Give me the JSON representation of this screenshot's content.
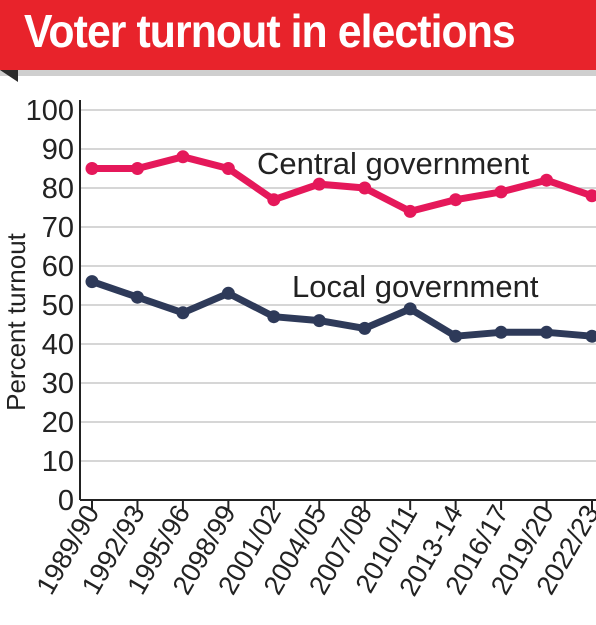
{
  "header": {
    "title": "Voter turnout in elections"
  },
  "chart_data": {
    "type": "line",
    "title": "Voter turnout in elections",
    "ylabel": "Percent turnout",
    "xlabel": "",
    "ylim": [
      0,
      100
    ],
    "yticks": [
      0,
      10,
      20,
      30,
      40,
      50,
      60,
      70,
      80,
      90,
      100
    ],
    "grid": true,
    "categories": [
      "1989/90",
      "1992/93",
      "1995/96",
      "2098/99",
      "2001/02",
      "2004/05",
      "2007/08",
      "2010/11",
      "2013-14",
      "2016/17",
      "2019/20",
      "2022/23"
    ],
    "series": [
      {
        "name": "Central government",
        "color": "#e5185a",
        "values": [
          85,
          85,
          88,
          85,
          77,
          81,
          80,
          74,
          77,
          79,
          82,
          78
        ]
      },
      {
        "name": "Local government",
        "color": "#2e3a59",
        "values": [
          56,
          52,
          48,
          53,
          47,
          46,
          44,
          49,
          42,
          43,
          43,
          42
        ]
      }
    ]
  }
}
